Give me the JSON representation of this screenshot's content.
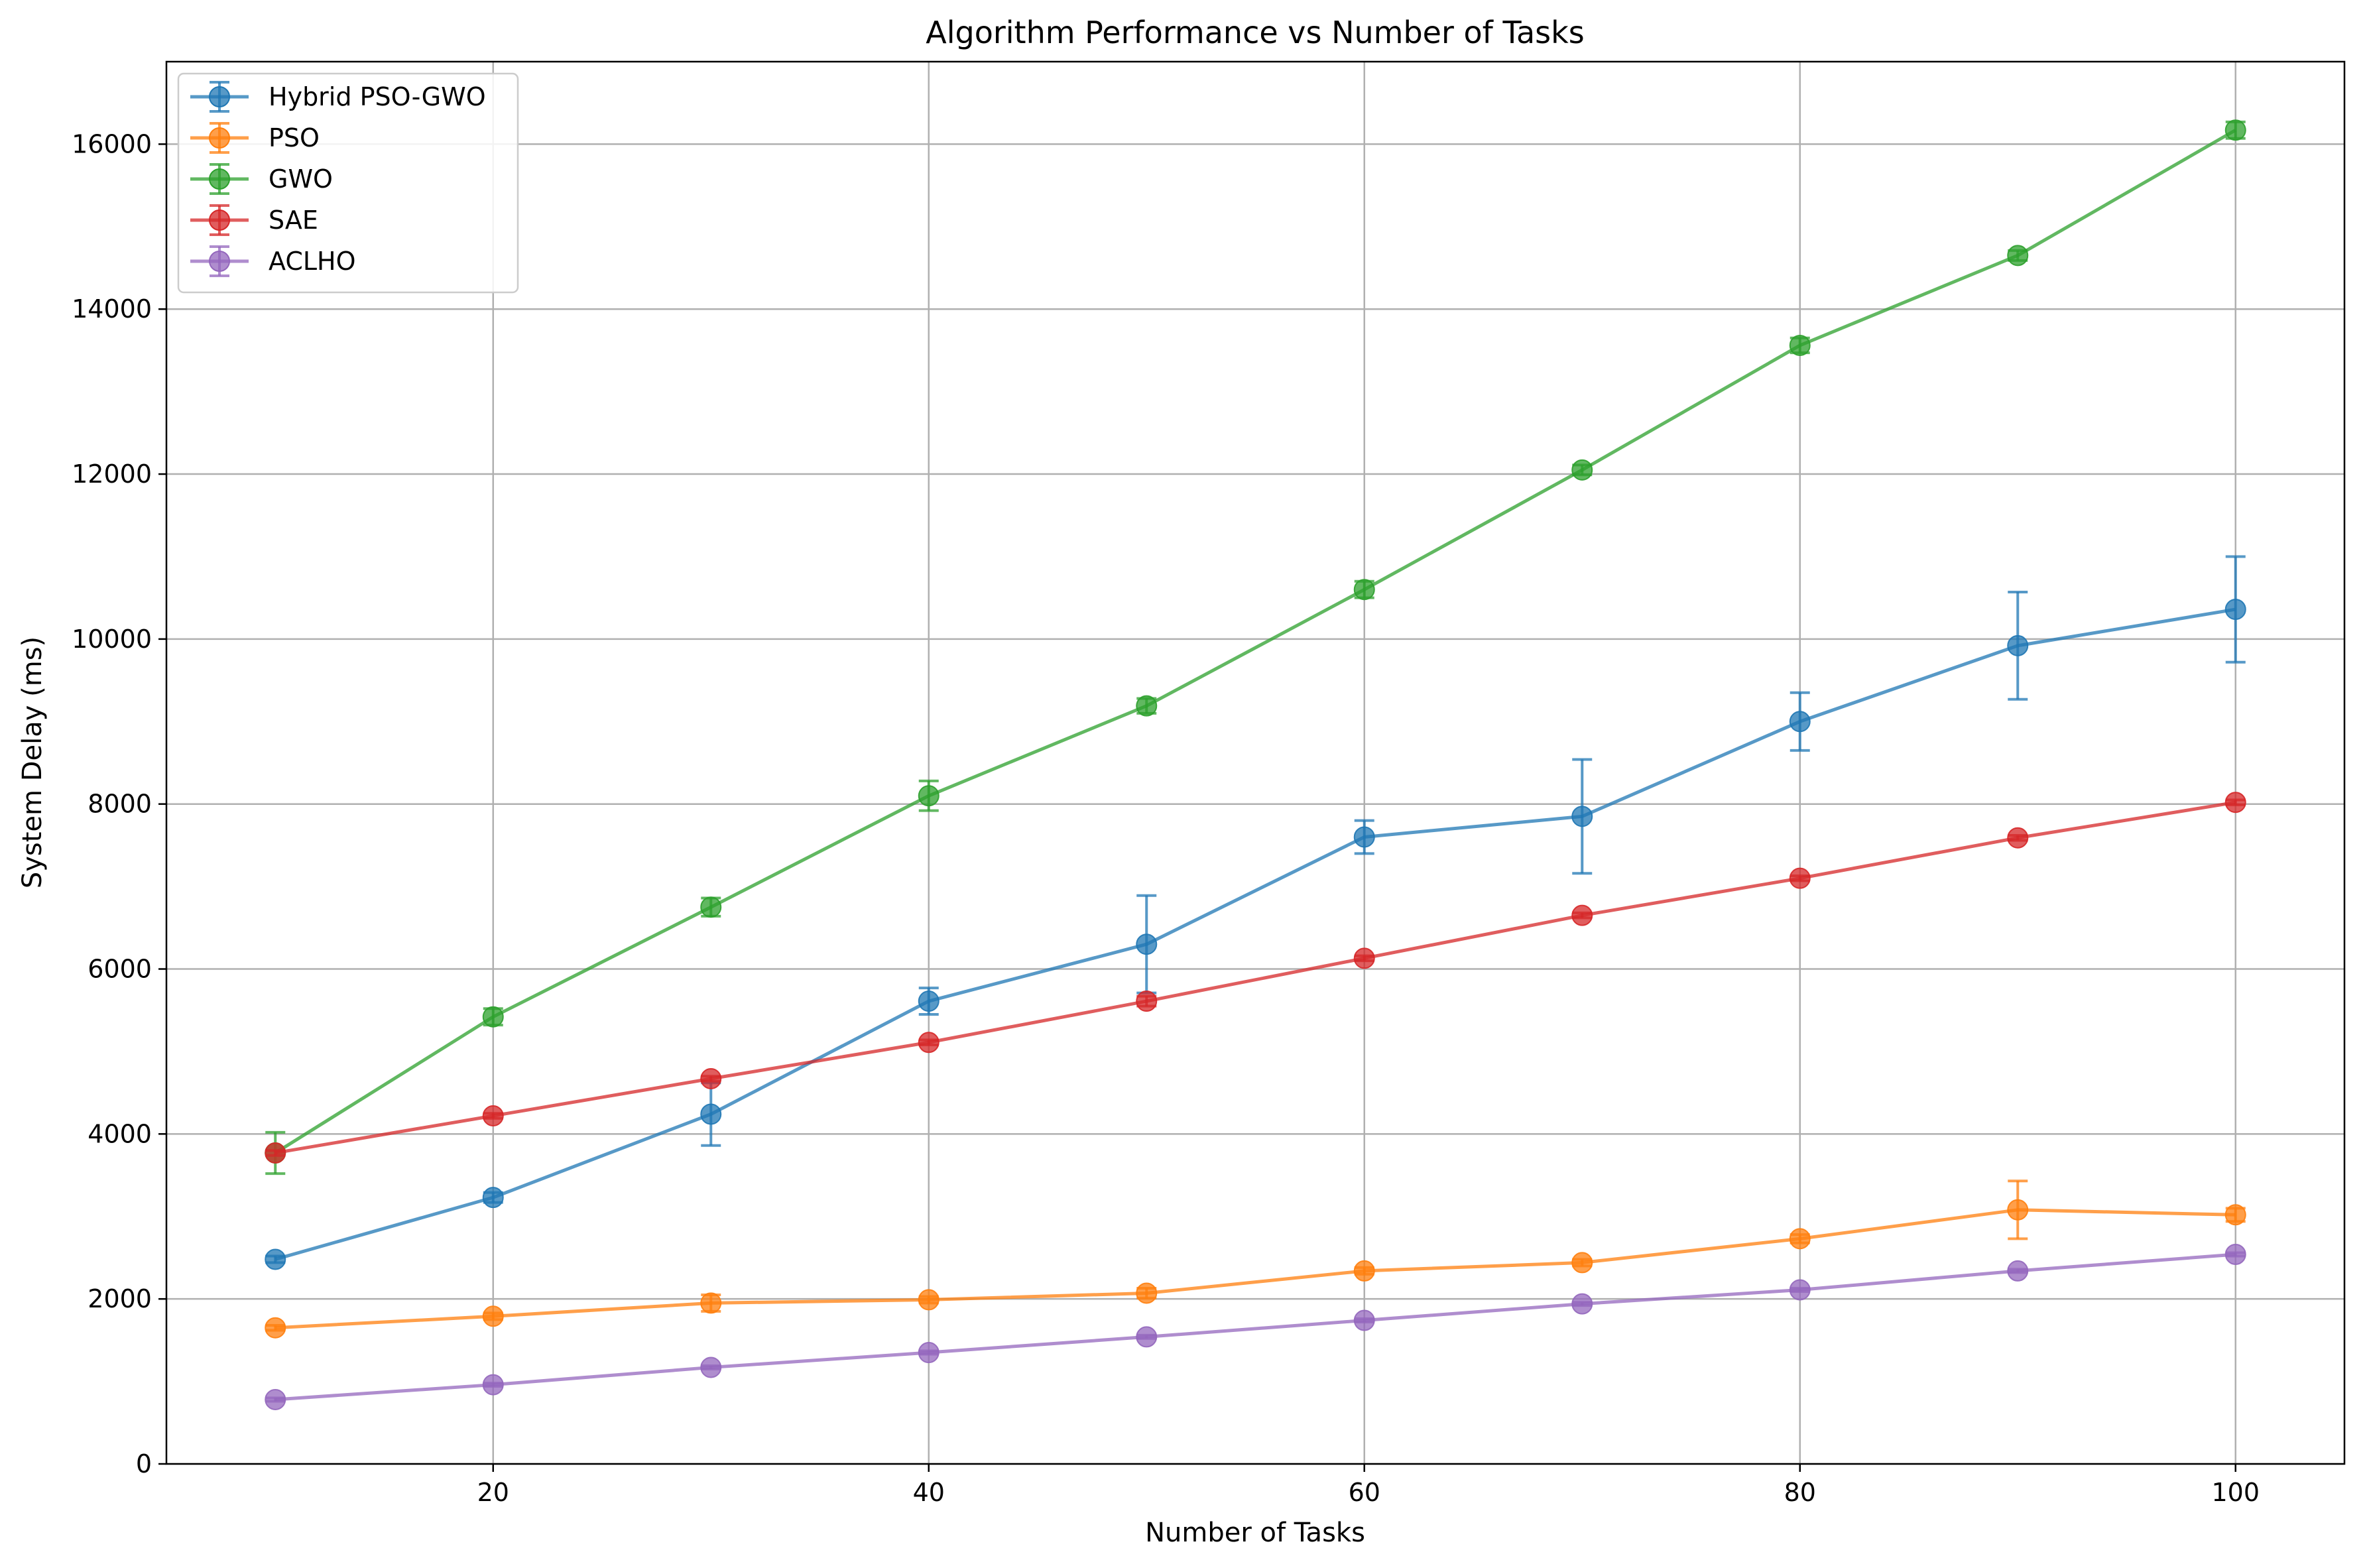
{
  "chart_data": {
    "type": "line",
    "title": "Algorithm Performance vs Number of Tasks",
    "xlabel": "Number of Tasks",
    "ylabel": "System Delay (ms)",
    "xlim": [
      5,
      105
    ],
    "ylim": [
      0,
      17000
    ],
    "xticks": [
      20,
      40,
      60,
      80,
      100
    ],
    "yticks": [
      0,
      2000,
      4000,
      6000,
      8000,
      10000,
      12000,
      14000,
      16000
    ],
    "grid": true,
    "legend_position": "upper left",
    "x": [
      10,
      20,
      30,
      40,
      50,
      60,
      70,
      80,
      90,
      100
    ],
    "series": [
      {
        "name": "Hybrid PSO-GWO",
        "color": "#1f77b4",
        "values": [
          2480,
          3230,
          4240,
          5610,
          6300,
          7600,
          7850,
          9000,
          9920,
          10360
        ],
        "errors": [
          40,
          60,
          380,
          160,
          590,
          200,
          690,
          350,
          650,
          640
        ]
      },
      {
        "name": "PSO",
        "color": "#ff7f0e",
        "values": [
          1650,
          1790,
          1950,
          1990,
          2070,
          2340,
          2440,
          2730,
          3080,
          3020
        ],
        "errors": [
          30,
          40,
          100,
          40,
          60,
          40,
          40,
          50,
          350,
          80
        ]
      },
      {
        "name": "GWO",
        "color": "#2ca02c",
        "values": [
          3770,
          5420,
          6750,
          8100,
          9190,
          10600,
          12050,
          13560,
          14650,
          16170
        ],
        "errors": [
          250,
          100,
          110,
          180,
          90,
          100,
          60,
          90,
          60,
          100
        ]
      },
      {
        "name": "SAE",
        "color": "#d62728",
        "values": [
          3770,
          4220,
          4670,
          5110,
          5610,
          6130,
          6650,
          7100,
          7590,
          8020
        ],
        "errors": [
          30,
          30,
          30,
          30,
          60,
          30,
          30,
          30,
          30,
          30
        ]
      },
      {
        "name": "ACLHO",
        "color": "#9467bd",
        "values": [
          780,
          960,
          1170,
          1350,
          1540,
          1740,
          1940,
          2110,
          2340,
          2540
        ],
        "errors": [
          20,
          20,
          20,
          20,
          20,
          20,
          20,
          20,
          20,
          20
        ]
      }
    ]
  }
}
